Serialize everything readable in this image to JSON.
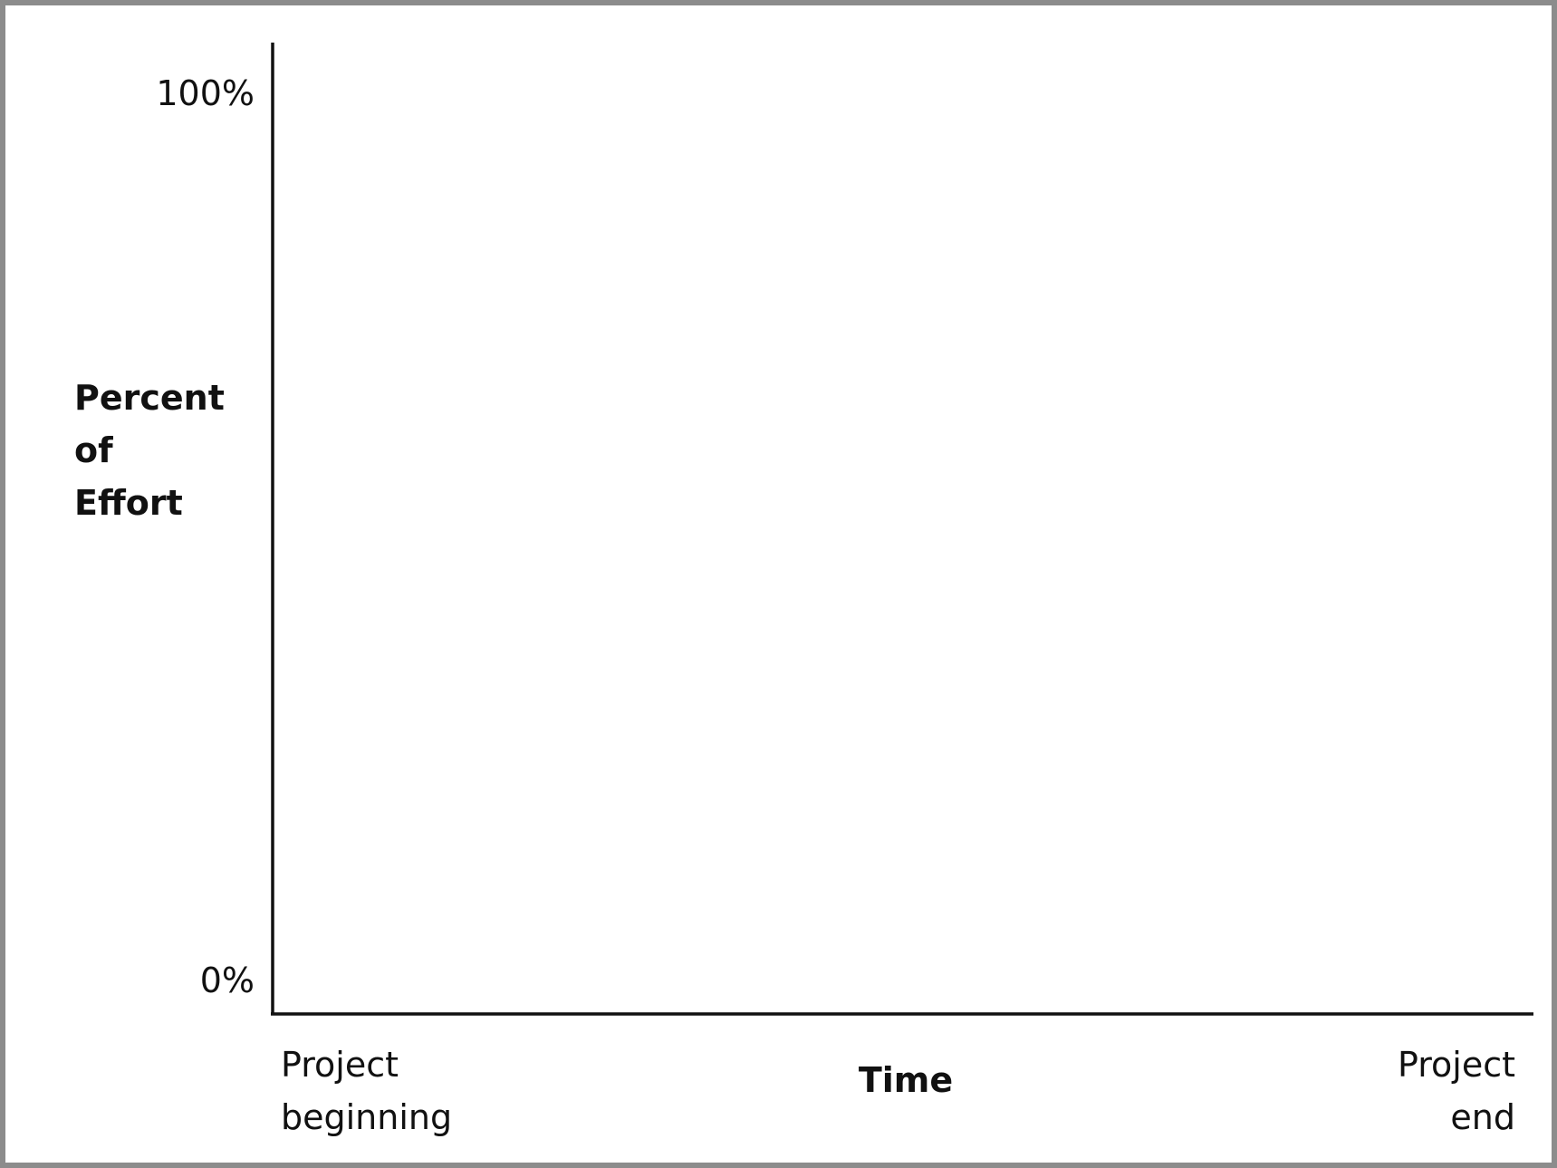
{
  "chart_data": {
    "type": "line",
    "title": "",
    "ylabel_lines": [
      "Percent",
      "of",
      "Effort"
    ],
    "xlabel": "Time",
    "y_ticks": [
      "0%",
      "100%"
    ],
    "ylim": [
      0,
      100
    ],
    "x_start_label_lines": [
      "Project",
      "beginning"
    ],
    "x_end_label_lines": [
      "Project",
      "end"
    ],
    "series": [],
    "grid": false,
    "legend": "none",
    "colors": {
      "axis": "#111111",
      "frame": "#8c8c8c",
      "background": "#ffffff"
    }
  }
}
